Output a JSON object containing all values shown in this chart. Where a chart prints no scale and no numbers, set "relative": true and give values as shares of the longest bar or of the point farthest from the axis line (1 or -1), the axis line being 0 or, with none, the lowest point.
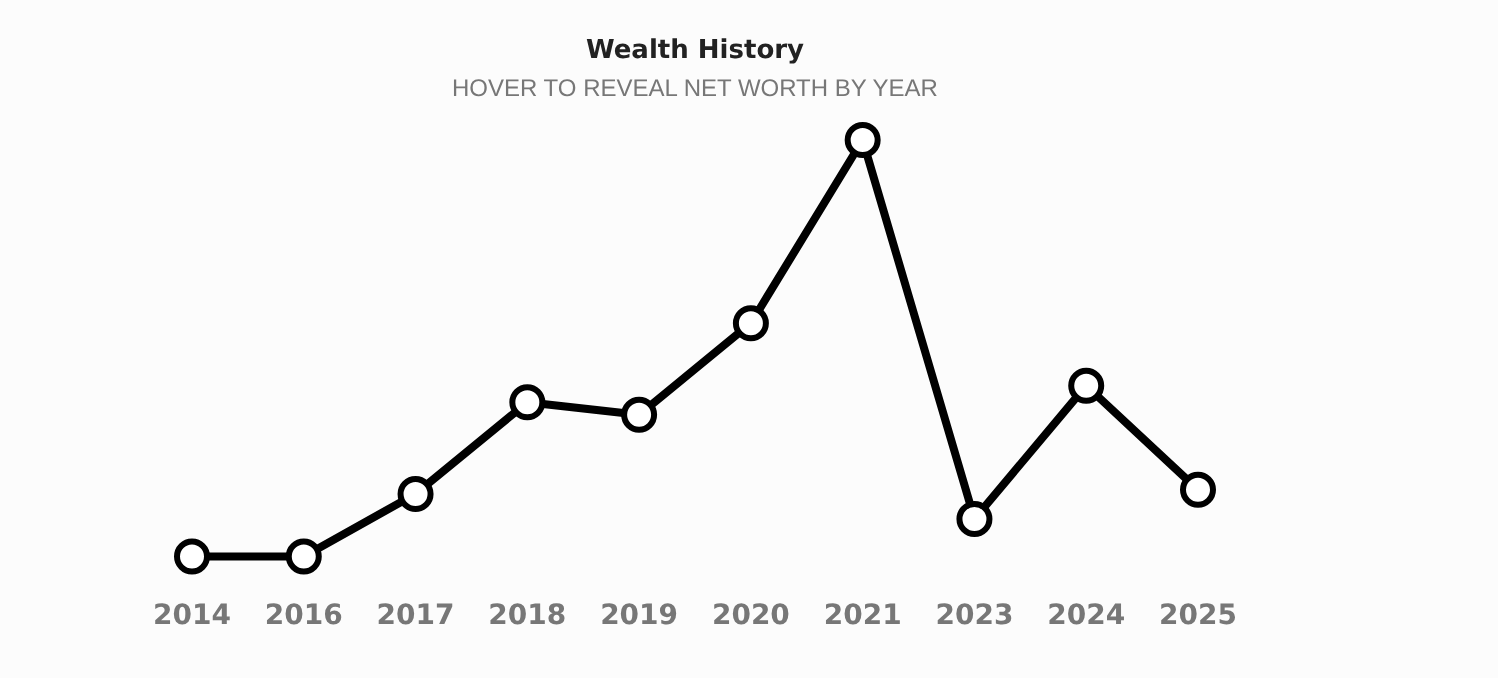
{
  "chart_data": {
    "type": "line",
    "title": "Wealth History",
    "subtitle": "HOVER TO REVEAL NET WORTH BY YEAR",
    "categories": [
      "2014",
      "2016",
      "2017",
      "2018",
      "2019",
      "2020",
      "2021",
      "2023",
      "2024",
      "2025"
    ],
    "relative": true,
    "marker": "circle",
    "series": [
      {
        "color": "#000000",
        "values": [
          0,
          0,
          0.15,
          0.37,
          0.34,
          0.56,
          1,
          0.09,
          0.41,
          0.16
        ]
      }
    ]
  }
}
